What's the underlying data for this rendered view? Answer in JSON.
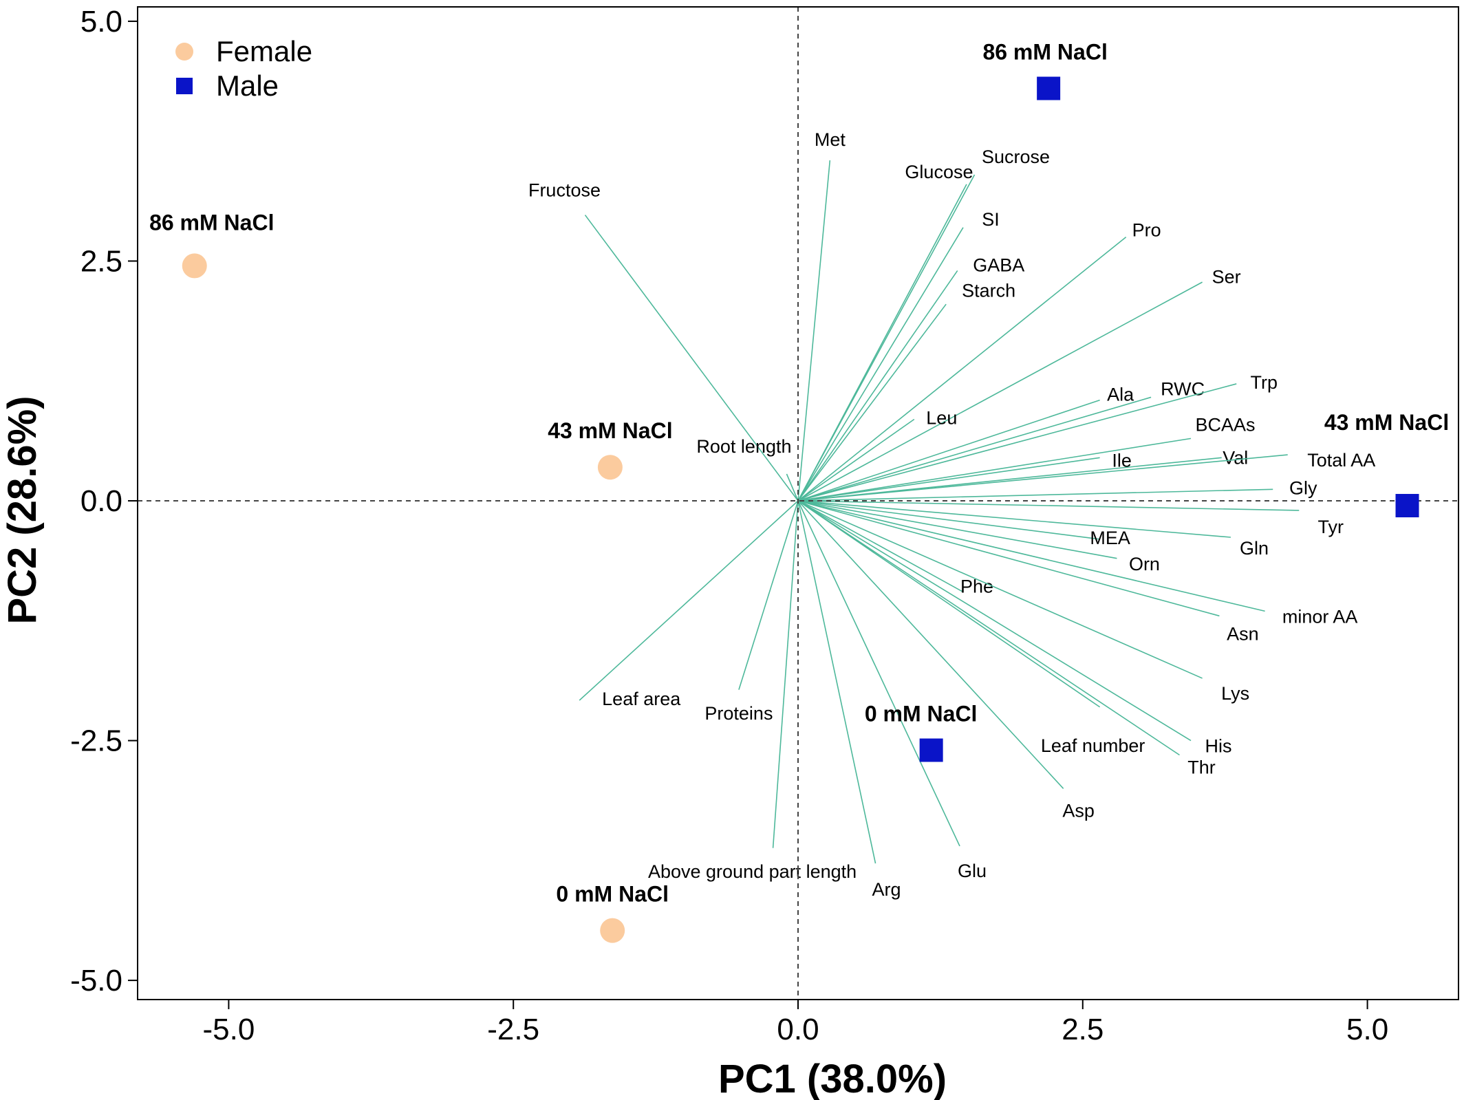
{
  "chart_data": {
    "type": "scatter",
    "subtype": "pca-biplot",
    "xlabel": "PC1 (38.0%)",
    "ylabel": "PC2 (28.6%)",
    "xlim": [
      -5.8,
      5.8
    ],
    "ylim": [
      -5.2,
      5.15
    ],
    "xticks": [
      -5.0,
      -2.5,
      0.0,
      2.5,
      5.0
    ],
    "yticks": [
      -5.0,
      -2.5,
      0.0,
      2.5,
      5.0
    ],
    "xtick_labels": [
      "-5.0",
      "-2.5",
      "0.0",
      "2.5",
      "5.0"
    ],
    "ytick_labels": [
      "-5.0",
      "-2.5",
      "0.0",
      "2.5",
      "5.0"
    ],
    "grid": false,
    "reference_lines": "dashed lines at x=0 and y=0",
    "legend": {
      "position": "top-left",
      "entries": [
        {
          "label": "Female",
          "marker": "circle",
          "color": "#FBCB9E"
        },
        {
          "label": "Male",
          "marker": "square",
          "color": "#0A14C8"
        }
      ]
    },
    "series": [
      {
        "name": "Female",
        "marker": "circle",
        "color": "#FBCB9E",
        "points": [
          {
            "label": "86 mM NaCl",
            "x": -5.3,
            "y": 2.45
          },
          {
            "label": "43 mM NaCl",
            "x": -1.65,
            "y": 0.35
          },
          {
            "label": "0 mM NaCl",
            "x": -1.63,
            "y": -4.48
          }
        ]
      },
      {
        "name": "Male",
        "marker": "square",
        "color": "#0A14C8",
        "points": [
          {
            "label": "86 mM NaCl",
            "x": 2.2,
            "y": 4.3
          },
          {
            "label": "43 mM NaCl",
            "x": 5.35,
            "y": -0.05
          },
          {
            "label": "0 mM NaCl",
            "x": 1.17,
            "y": -2.6
          }
        ]
      }
    ],
    "loadings_color": "#4DB89A",
    "loadings": [
      {
        "name": "Met",
        "x": 0.28,
        "y": 3.55
      },
      {
        "name": "Glucose",
        "x": 1.48,
        "y": 3.3
      },
      {
        "name": "Sucrose",
        "x": 1.55,
        "y": 3.4
      },
      {
        "name": "Fructose",
        "x": -1.87,
        "y": 2.98
      },
      {
        "name": "SI",
        "x": 1.45,
        "y": 2.85
      },
      {
        "name": "GABA",
        "x": 1.4,
        "y": 2.4
      },
      {
        "name": "Starch",
        "x": 1.3,
        "y": 2.05
      },
      {
        "name": "Pro",
        "x": 2.88,
        "y": 2.75
      },
      {
        "name": "Ser",
        "x": 3.55,
        "y": 2.28
      },
      {
        "name": "Leu",
        "x": 1.02,
        "y": 0.85
      },
      {
        "name": "Ala",
        "x": 2.65,
        "y": 1.05
      },
      {
        "name": "RWC",
        "x": 3.1,
        "y": 1.08
      },
      {
        "name": "Trp",
        "x": 3.85,
        "y": 1.22
      },
      {
        "name": "Ile",
        "x": 2.65,
        "y": 0.45
      },
      {
        "name": "BCAAs",
        "x": 3.45,
        "y": 0.65
      },
      {
        "name": "Val",
        "x": 3.72,
        "y": 0.45
      },
      {
        "name": "Total AA",
        "x": 4.3,
        "y": 0.48
      },
      {
        "name": "Gly",
        "x": 4.17,
        "y": 0.12
      },
      {
        "name": "Tyr",
        "x": 4.4,
        "y": -0.1
      },
      {
        "name": "Root length",
        "x": -0.1,
        "y": 0.28
      },
      {
        "name": "MEA",
        "x": 2.65,
        "y": -0.4
      },
      {
        "name": "Gln",
        "x": 3.8,
        "y": -0.38
      },
      {
        "name": "Orn",
        "x": 2.8,
        "y": -0.6
      },
      {
        "name": "Phe",
        "x": 1.45,
        "y": -0.95
      },
      {
        "name": "minor AA",
        "x": 4.1,
        "y": -1.15
      },
      {
        "name": "Asn",
        "x": 3.7,
        "y": -1.2
      },
      {
        "name": "Lys",
        "x": 3.55,
        "y": -1.85
      },
      {
        "name": "Leaf area",
        "x": -1.92,
        "y": -2.08
      },
      {
        "name": "Proteins",
        "x": -0.52,
        "y": -1.97
      },
      {
        "name": "Leaf number",
        "x": 2.65,
        "y": -2.15
      },
      {
        "name": "His",
        "x": 3.45,
        "y": -2.5
      },
      {
        "name": "Thr",
        "x": 3.35,
        "y": -2.65
      },
      {
        "name": "Asp",
        "x": 2.33,
        "y": -3.0
      },
      {
        "name": "Glu",
        "x": 1.42,
        "y": -3.6
      },
      {
        "name": "Above ground part length",
        "x": -0.22,
        "y": -3.62
      },
      {
        "name": "Arg",
        "x": 0.68,
        "y": -3.78
      }
    ],
    "label_offsets_note": ""
  }
}
